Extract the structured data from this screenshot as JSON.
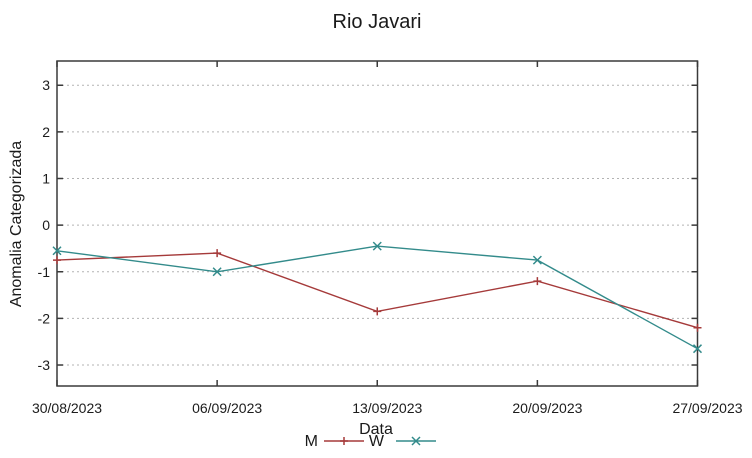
{
  "title": "Rio Javari",
  "chart_data": {
    "type": "line",
    "title": "Rio Javari",
    "xlabel": "Data",
    "ylabel": "Anomalia Categorizada",
    "categories": [
      "30/08/2023",
      "06/09/2023",
      "13/09/2023",
      "20/09/2023",
      "27/09/2023"
    ],
    "series": [
      {
        "name": "M",
        "marker": "plus",
        "color": "#a53a3a",
        "values": [
          -0.75,
          -0.6,
          -1.85,
          -1.2,
          -2.2
        ]
      },
      {
        "name": "W",
        "marker": "cross",
        "color": "#338b8b",
        "values": [
          -0.55,
          -1.0,
          -0.45,
          -0.75,
          -2.65
        ]
      }
    ],
    "y_ticks": [
      3,
      2,
      1,
      0,
      -1,
      -2,
      -3
    ],
    "ylim": [
      -3.45,
      3.52
    ],
    "grid": "horizontal-dashed",
    "legend_position": "bottom-center-below-xlabel"
  },
  "colors": {
    "background": "#ffffff",
    "axis_border": "#3a3a3a",
    "gridline": "#b3b3b3",
    "text": "#1a1a1a",
    "series_m": "#a53a3a",
    "series_w": "#338b8b"
  }
}
